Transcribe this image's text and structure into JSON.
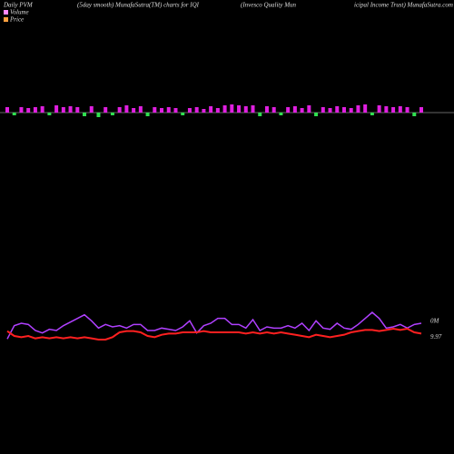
{
  "chart_data": [
    {
      "type": "bar",
      "title": [
        "Daily PVM",
        "(5day smooth) MunafaSutra(TM) charts for IQI",
        "(Invesco  Quality  Mun",
        "icipal Income  Trust) MunafaSutra.com"
      ],
      "values": [
        6,
        -3,
        6,
        5,
        6,
        7,
        -3,
        8,
        6,
        7,
        6,
        -4,
        7,
        -5,
        6,
        -3,
        6,
        8,
        5,
        7,
        -4,
        6,
        5,
        6,
        5,
        -3,
        5,
        6,
        4,
        7,
        5,
        8,
        9,
        8,
        7,
        8,
        -4,
        7,
        6,
        -3,
        6,
        7,
        5,
        8,
        -4,
        6,
        5,
        7,
        6,
        5,
        8,
        9,
        -3,
        8,
        7,
        6,
        7,
        6,
        -4,
        6
      ],
      "up_color": "#e020e0",
      "down_color": "#30e050",
      "ylim": [
        -30,
        30
      ]
    },
    {
      "type": "line",
      "series": [
        {
          "name": "Volume",
          "color": "#b040ff",
          "legend_color": "#ff88ff",
          "axis": "y2",
          "end_label": "0M",
          "values": [
            5,
            16,
            18,
            17,
            12,
            10,
            13,
            12,
            16,
            19,
            22,
            25,
            20,
            14,
            17,
            15,
            16,
            14,
            17,
            17,
            12,
            12,
            14,
            13,
            12,
            15,
            20,
            10,
            16,
            18,
            22,
            22,
            17,
            17,
            14,
            21,
            12,
            15,
            14,
            14,
            16,
            14,
            18,
            12,
            20,
            14,
            13,
            18,
            14,
            13,
            17,
            22,
            27,
            22,
            14,
            15,
            17,
            14,
            17,
            18
          ]
        },
        {
          "name": "Price",
          "color": "#ff2020",
          "legend_color": "#ffa040",
          "end_label": "9.97",
          "values": [
            9.99,
            9.95,
            9.94,
            9.95,
            9.93,
            9.94,
            9.93,
            9.94,
            9.93,
            9.94,
            9.93,
            9.94,
            9.93,
            9.92,
            9.92,
            9.94,
            9.98,
            9.99,
            9.99,
            9.98,
            9.95,
            9.94,
            9.96,
            9.97,
            9.97,
            9.98,
            9.98,
            9.98,
            9.99,
            9.98,
            9.98,
            9.98,
            9.98,
            9.98,
            9.97,
            9.98,
            9.97,
            9.98,
            9.97,
            9.98,
            9.97,
            9.96,
            9.95,
            9.94,
            9.96,
            9.95,
            9.94,
            9.95,
            9.96,
            9.98,
            9.99,
            10.0,
            10.0,
            9.99,
            10.0,
            10.01,
            10.0,
            10.01,
            9.98,
            9.97
          ]
        }
      ],
      "ylim": [
        9.8,
        10.1
      ],
      "y2lim": [
        0,
        30
      ]
    }
  ]
}
